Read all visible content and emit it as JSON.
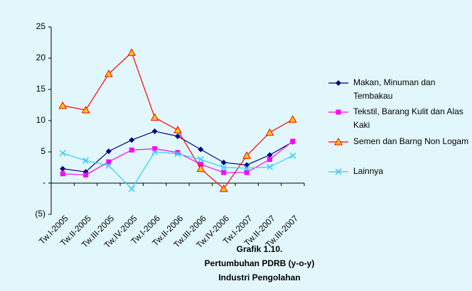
{
  "chart_data": {
    "type": "line",
    "title": "Grafik 1.10.",
    "subtitle": "Pertumbuhan PDRB (y-o-y)",
    "subtitle2": "Industri Pengolahan",
    "categories": [
      "Tw.I-2005",
      "Tw.II-2005",
      "Tw.III-2005",
      "Tw.IV-2005",
      "Tw.I-2006",
      "Tw.II-2006",
      "Tw.III-2006",
      "Tw.IV-2006",
      "Tw.I-2007",
      "Tw.II-2007",
      "Tw.III-2007"
    ],
    "series": [
      {
        "name": "Makan, Minuman dan Tembakau",
        "color": "#000080",
        "values": [
          2.3,
          1.8,
          5.1,
          6.9,
          8.3,
          7.5,
          5.4,
          3.3,
          2.9,
          4.5,
          6.6
        ]
      },
      {
        "name": "Tekstil, Barang Kulit dan Alas Kaki",
        "color": "#ff00ff",
        "values": [
          1.5,
          1.3,
          3.4,
          5.3,
          5.5,
          4.9,
          3.0,
          1.7,
          1.7,
          3.8,
          6.7
        ]
      },
      {
        "name": "Semen dan Barng Non Logam",
        "color": "#ff0000",
        "values": [
          12.4,
          11.7,
          17.5,
          20.9,
          10.5,
          8.5,
          2.3,
          -0.9,
          4.4,
          8.1,
          10.2
        ]
      },
      {
        "name": "Lainnya",
        "color": "#33ccff",
        "values": [
          4.8,
          3.6,
          2.8,
          -0.9,
          5.0,
          4.7,
          3.8,
          2.5,
          2.4,
          2.6,
          4.4
        ]
      }
    ],
    "ylim": [
      -5,
      25
    ],
    "yticks": [
      {
        "value": -5,
        "label": "(5)"
      },
      {
        "value": 0,
        "label": "-"
      },
      5,
      10,
      15,
      20,
      25
    ],
    "grid": false,
    "legend": "right"
  }
}
